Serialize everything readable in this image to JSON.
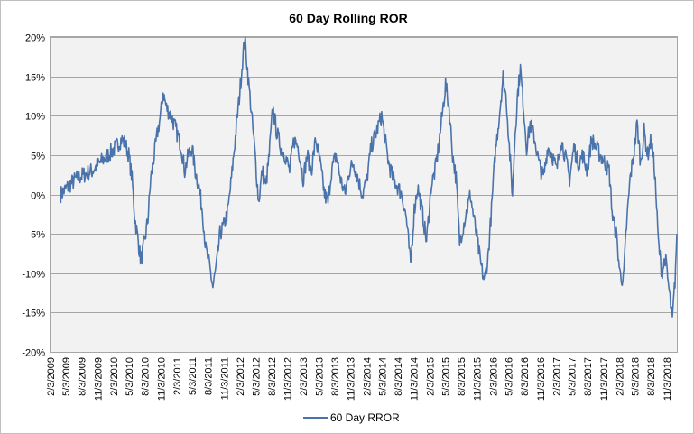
{
  "chart_data": {
    "type": "line",
    "title": "60 Day Rolling ROR",
    "xlabel": "",
    "ylabel": "",
    "ylim": [
      -0.2,
      0.2
    ],
    "y_ticks": [
      0.2,
      0.15,
      0.1,
      0.05,
      0.0,
      -0.05,
      -0.1,
      -0.15,
      -0.2
    ],
    "y_tick_labels": [
      "20%",
      "15%",
      "10%",
      "5%",
      "0%",
      "-5%",
      "-10%",
      "-15%",
      "-20%"
    ],
    "x_range": [
      "2009-02-03",
      "2018-12-31"
    ],
    "x_tick_labels": [
      "2/3/2009",
      "5/3/2009",
      "8/3/2009",
      "11/3/2009",
      "2/3/2010",
      "5/3/2010",
      "8/3/2010",
      "11/3/2010",
      "2/3/2011",
      "5/3/2011",
      "8/3/2011",
      "11/3/2011",
      "2/3/2012",
      "5/3/2012",
      "8/3/2012",
      "11/3/2012",
      "2/3/2013",
      "5/3/2013",
      "8/3/2013",
      "11/3/2013",
      "2/3/2014",
      "5/3/2014",
      "8/3/2014",
      "11/3/2014",
      "2/3/2015",
      "5/3/2015",
      "8/3/2015",
      "11/3/2015",
      "2/3/2016",
      "5/3/2016",
      "8/3/2016",
      "11/3/2016",
      "2/3/2017",
      "5/3/2017",
      "8/3/2017",
      "11/3/2017",
      "2/3/2018",
      "5/3/2018",
      "8/3/2018",
      "11/3/2018"
    ],
    "grid": true,
    "legend_position": "bottom",
    "colors": {
      "series": "#4a73ab",
      "plot_bg": "#f2f2f2",
      "grid": "#a6a6a6"
    },
    "series": [
      {
        "name": "60 Day RROR",
        "points": [
          [
            "2009-04-03",
            0.0
          ],
          [
            "2009-05-15",
            0.01
          ],
          [
            "2009-07-01",
            0.02
          ],
          [
            "2009-08-15",
            0.025
          ],
          [
            "2009-10-01",
            0.03
          ],
          [
            "2009-11-15",
            0.04
          ],
          [
            "2010-01-01",
            0.05
          ],
          [
            "2010-02-15",
            0.06
          ],
          [
            "2010-03-20",
            0.07
          ],
          [
            "2010-04-10",
            0.065
          ],
          [
            "2010-05-01",
            0.05
          ],
          [
            "2010-05-20",
            0.02
          ],
          [
            "2010-06-05",
            -0.03
          ],
          [
            "2010-06-25",
            -0.06
          ],
          [
            "2010-07-10",
            -0.085
          ],
          [
            "2010-08-01",
            -0.06
          ],
          [
            "2010-08-20",
            -0.03
          ],
          [
            "2010-09-05",
            0.02
          ],
          [
            "2010-09-25",
            0.05
          ],
          [
            "2010-10-15",
            0.08
          ],
          [
            "2010-11-01",
            0.1
          ],
          [
            "2010-11-15",
            0.13
          ],
          [
            "2010-12-05",
            0.11
          ],
          [
            "2011-01-01",
            0.1
          ],
          [
            "2011-02-01",
            0.08
          ],
          [
            "2011-03-01",
            0.06
          ],
          [
            "2011-03-20",
            0.03
          ],
          [
            "2011-04-10",
            0.05
          ],
          [
            "2011-05-01",
            0.06
          ],
          [
            "2011-05-20",
            0.03
          ],
          [
            "2011-06-10",
            0.01
          ],
          [
            "2011-06-30",
            -0.02
          ],
          [
            "2011-07-20",
            -0.07
          ],
          [
            "2011-08-10",
            -0.09
          ],
          [
            "2011-08-30",
            -0.118
          ],
          [
            "2011-09-20",
            -0.09
          ],
          [
            "2011-10-10",
            -0.05
          ],
          [
            "2011-11-01",
            -0.04
          ],
          [
            "2011-11-25",
            -0.02
          ],
          [
            "2011-12-15",
            0.02
          ],
          [
            "2012-01-10",
            0.08
          ],
          [
            "2012-02-01",
            0.13
          ],
          [
            "2012-03-01",
            0.2
          ],
          [
            "2012-03-20",
            0.15
          ],
          [
            "2012-04-10",
            0.1
          ],
          [
            "2012-04-30",
            0.05
          ],
          [
            "2012-05-20",
            -0.01
          ],
          [
            "2012-06-10",
            0.03
          ],
          [
            "2012-07-01",
            0.01
          ],
          [
            "2012-07-20",
            0.05
          ],
          [
            "2012-08-10",
            0.11
          ],
          [
            "2012-09-01",
            0.08
          ],
          [
            "2012-09-25",
            0.06
          ],
          [
            "2012-10-20",
            0.05
          ],
          [
            "2012-11-15",
            0.03
          ],
          [
            "2012-12-10",
            0.07
          ],
          [
            "2013-01-05",
            0.06
          ],
          [
            "2013-02-01",
            0.02
          ],
          [
            "2013-02-25",
            0.05
          ],
          [
            "2013-03-20",
            0.03
          ],
          [
            "2013-04-15",
            0.07
          ],
          [
            "2013-05-10",
            0.04
          ],
          [
            "2013-06-05",
            0.0
          ],
          [
            "2013-06-25",
            -0.01
          ],
          [
            "2013-07-15",
            0.03
          ],
          [
            "2013-08-10",
            0.05
          ],
          [
            "2013-09-05",
            0.02
          ],
          [
            "2013-10-01",
            0.0
          ],
          [
            "2013-10-25",
            0.03
          ],
          [
            "2013-11-20",
            0.04
          ],
          [
            "2013-12-15",
            0.02
          ],
          [
            "2014-01-10",
            0.0
          ],
          [
            "2014-02-05",
            0.02
          ],
          [
            "2014-03-01",
            0.06
          ],
          [
            "2014-04-01",
            0.08
          ],
          [
            "2014-05-01",
            0.1
          ],
          [
            "2014-05-20",
            0.07
          ],
          [
            "2014-06-10",
            0.04
          ],
          [
            "2014-07-05",
            0.02
          ],
          [
            "2014-08-01",
            0.01
          ],
          [
            "2014-08-25",
            0.0
          ],
          [
            "2014-09-20",
            -0.03
          ],
          [
            "2014-10-15",
            -0.09
          ],
          [
            "2014-11-05",
            -0.02
          ],
          [
            "2014-11-25",
            0.01
          ],
          [
            "2014-12-20",
            -0.02
          ],
          [
            "2015-01-15",
            -0.06
          ],
          [
            "2015-02-10",
            0.01
          ],
          [
            "2015-03-05",
            0.03
          ],
          [
            "2015-03-25",
            0.06
          ],
          [
            "2015-04-15",
            0.1
          ],
          [
            "2015-05-05",
            0.14
          ],
          [
            "2015-05-25",
            0.11
          ],
          [
            "2015-06-15",
            0.05
          ],
          [
            "2015-07-05",
            0.02
          ],
          [
            "2015-07-25",
            -0.06
          ],
          [
            "2015-08-15",
            -0.04
          ],
          [
            "2015-09-05",
            -0.02
          ],
          [
            "2015-09-25",
            0.0
          ],
          [
            "2015-10-15",
            -0.03
          ],
          [
            "2015-11-05",
            -0.06
          ],
          [
            "2015-11-25",
            -0.09
          ],
          [
            "2015-12-15",
            -0.11
          ],
          [
            "2016-01-05",
            -0.08
          ],
          [
            "2016-01-25",
            -0.02
          ],
          [
            "2016-02-15",
            0.05
          ],
          [
            "2016-03-10",
            0.1
          ],
          [
            "2016-04-01",
            0.15
          ],
          [
            "2016-04-20",
            0.12
          ],
          [
            "2016-05-10",
            0.05
          ],
          [
            "2016-05-25",
            0.0
          ],
          [
            "2016-06-10",
            0.08
          ],
          [
            "2016-06-25",
            0.13
          ],
          [
            "2016-07-10",
            0.16
          ],
          [
            "2016-07-25",
            0.12
          ],
          [
            "2016-08-15",
            0.06
          ],
          [
            "2016-09-05",
            0.09
          ],
          [
            "2016-10-01",
            0.07
          ],
          [
            "2016-10-25",
            0.04
          ],
          [
            "2016-11-20",
            0.02
          ],
          [
            "2016-12-15",
            0.06
          ],
          [
            "2017-01-10",
            0.05
          ],
          [
            "2017-02-05",
            0.03
          ],
          [
            "2017-03-01",
            0.07
          ],
          [
            "2017-03-25",
            0.05
          ],
          [
            "2017-04-20",
            0.02
          ],
          [
            "2017-05-15",
            0.06
          ],
          [
            "2017-06-10",
            0.04
          ],
          [
            "2017-07-05",
            0.05
          ],
          [
            "2017-08-01",
            0.03
          ],
          [
            "2017-08-25",
            0.07
          ],
          [
            "2017-09-20",
            0.06
          ],
          [
            "2017-10-15",
            0.05
          ],
          [
            "2017-11-10",
            0.04
          ],
          [
            "2017-12-05",
            0.03
          ],
          [
            "2017-12-25",
            -0.03
          ],
          [
            "2018-01-15",
            -0.05
          ],
          [
            "2018-02-05",
            -0.1
          ],
          [
            "2018-02-25",
            -0.11
          ],
          [
            "2018-03-15",
            -0.04
          ],
          [
            "2018-04-05",
            0.02
          ],
          [
            "2018-04-25",
            0.05
          ],
          [
            "2018-05-15",
            0.09
          ],
          [
            "2018-06-05",
            0.04
          ],
          [
            "2018-06-25",
            0.08
          ],
          [
            "2018-07-15",
            0.05
          ],
          [
            "2018-08-05",
            0.07
          ],
          [
            "2018-08-25",
            0.03
          ],
          [
            "2018-09-15",
            -0.06
          ],
          [
            "2018-10-05",
            -0.1
          ],
          [
            "2018-10-25",
            -0.08
          ],
          [
            "2018-11-15",
            -0.12
          ],
          [
            "2018-12-05",
            -0.16
          ],
          [
            "2018-12-20",
            -0.11
          ],
          [
            "2018-12-31",
            -0.05
          ]
        ]
      }
    ]
  }
}
